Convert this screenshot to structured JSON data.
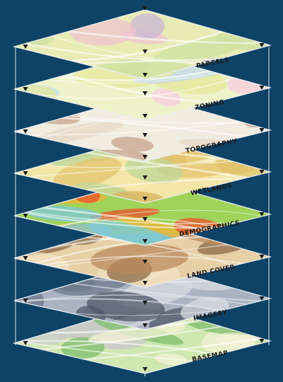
{
  "diagram": {
    "layers": [
      {
        "id": "parcels",
        "label": "PARCELS",
        "colors": [
          "#e8ecb4",
          "#cfe0a0",
          "#f0c4cf",
          "#c9b7d6"
        ]
      },
      {
        "id": "zoning",
        "label": "ZONING",
        "colors": [
          "#eef2c9",
          "#f7cde0",
          "#c2dcf0",
          "#e4e89a"
        ]
      },
      {
        "id": "topography",
        "label": "TOPOGRAPHY",
        "colors": [
          "#f1ece0",
          "#c7a48c",
          "#e6d8c4",
          "#b9cfa0"
        ]
      },
      {
        "id": "wetlands",
        "label": "WETLANDS",
        "colors": [
          "#f3e6a8",
          "#e3c46e",
          "#bfd79a",
          "#d9b35c"
        ]
      },
      {
        "id": "demographics",
        "label": "DEMOGRAPHICS",
        "colors": [
          "#9fd35a",
          "#f2b33a",
          "#e9512b",
          "#7fc7d9"
        ]
      },
      {
        "id": "land-cover",
        "label": "LAND COVER",
        "colors": [
          "#e7cfa6",
          "#b98a5c",
          "#f1e2c1",
          "#8c6a48"
        ]
      },
      {
        "id": "imagery",
        "label": "IMAGERY",
        "colors": [
          "#aab3c2",
          "#6f7a8c",
          "#d7dbe1",
          "#4f5868"
        ]
      },
      {
        "id": "basemap",
        "label": "BASEMAP",
        "colors": [
          "#cfe7b0",
          "#7ebd6e",
          "#f3f1d6",
          "#c9c9c9"
        ]
      }
    ]
  }
}
